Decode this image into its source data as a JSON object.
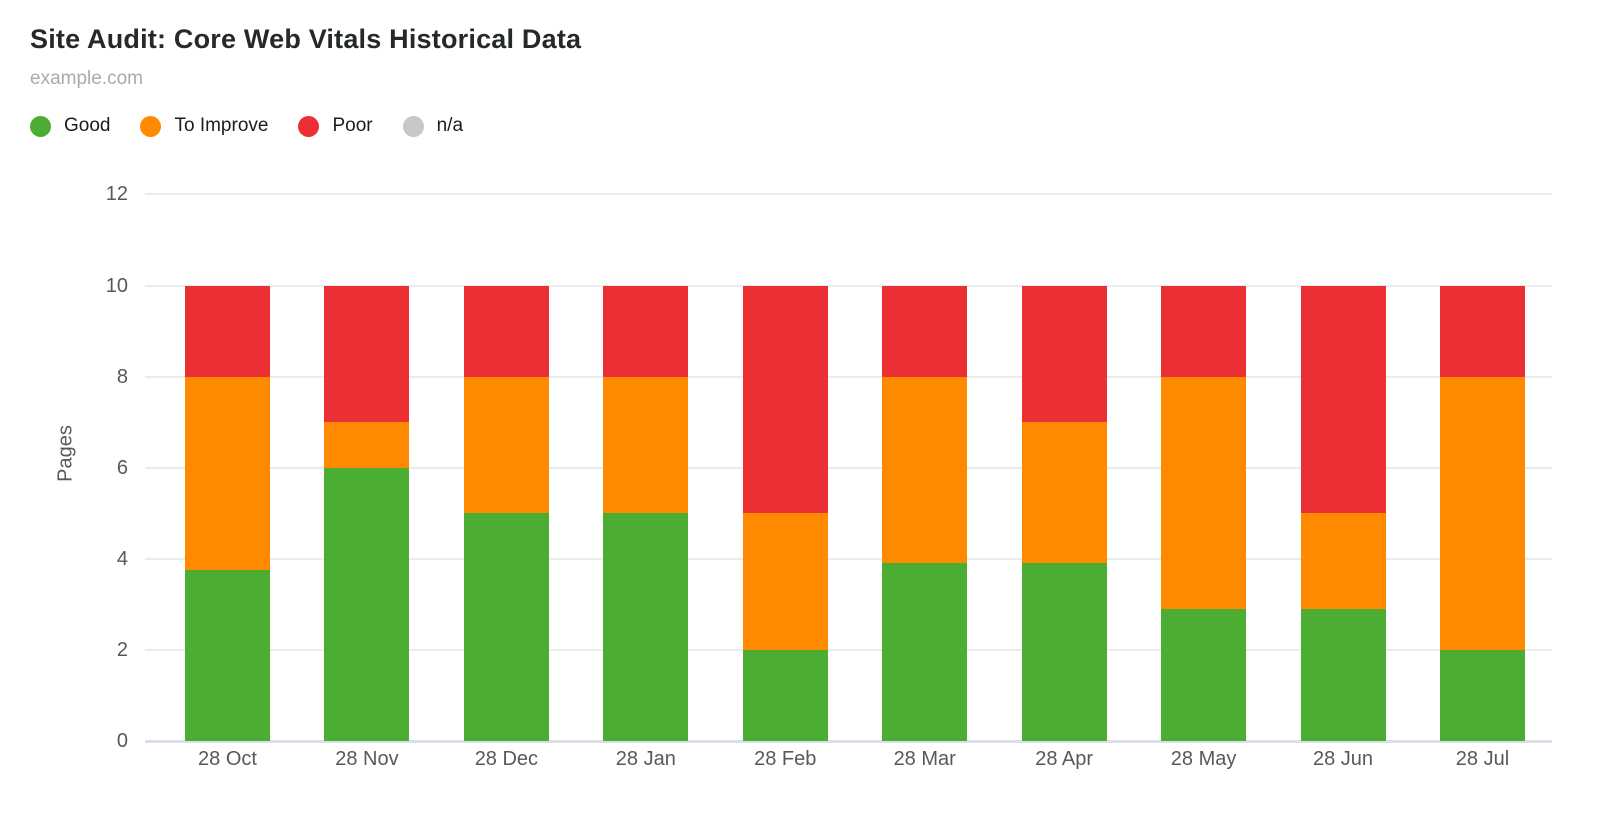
{
  "header": {
    "title": "Site Audit: Core Web Vitals Historical Data",
    "subtitle": "example.com"
  },
  "legend": {
    "items": [
      {
        "label": "Good",
        "color": "#4CAD33"
      },
      {
        "label": "To Improve",
        "color": "#FF8A00"
      },
      {
        "label": "Poor",
        "color": "#EB2F35"
      },
      {
        "label": "n/a",
        "color": "#C7C7C7"
      }
    ]
  },
  "chart_data": {
    "type": "bar",
    "stacked": true,
    "title": "Site Audit: Core Web Vitals Historical Data",
    "subtitle": "example.com",
    "categories": [
      "28 Oct",
      "28 Nov",
      "28 Dec",
      "28 Jan",
      "28 Feb",
      "28 Mar",
      "28 Apr",
      "28 May",
      "28 Jun",
      "28 Jul"
    ],
    "series": [
      {
        "name": "Good",
        "color": "#4CAD33",
        "values": [
          3.75,
          6,
          5,
          5,
          2,
          3.9,
          3.9,
          2.9,
          2.9,
          2
        ]
      },
      {
        "name": "To Improve",
        "color": "#FF8A00",
        "values": [
          4.25,
          1,
          3,
          3,
          3,
          4.1,
          3.1,
          5.1,
          2.1,
          6
        ]
      },
      {
        "name": "Poor",
        "color": "#EB2F35",
        "values": [
          2,
          3,
          2,
          2,
          5,
          2,
          3,
          2,
          5,
          2
        ]
      },
      {
        "name": "n/a",
        "color": "#C7C7C7",
        "values": [
          0,
          0,
          0,
          0,
          0,
          0,
          0,
          0,
          0,
          0
        ]
      }
    ],
    "xlabel": "",
    "ylabel": "Pages",
    "ylim": [
      0,
      12
    ],
    "yticks": [
      0,
      2,
      4,
      6,
      8,
      10,
      12
    ],
    "grid": true,
    "legend_position": "top-left"
  },
  "colors": {
    "background": "#FFFFFF",
    "gridline": "#ECECEC",
    "baseline": "#D8E0EB",
    "tick_text": "#55595E",
    "title_text": "#26292C",
    "subtitle_text": "#A8ABAF",
    "legend_text": "#1A1C1E"
  }
}
